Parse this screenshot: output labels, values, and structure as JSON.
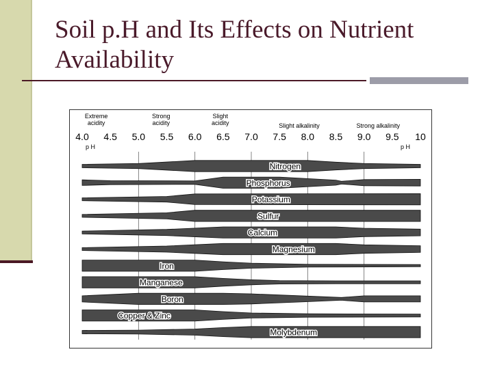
{
  "slide": {
    "title_line1": "Soil p.H and Its Effects on Nutrient",
    "title_line2": "Availability"
  },
  "colors": {
    "accent_bar": "#d7d9ad",
    "title": "#4a1a2a",
    "rule_dark": "#4a1824",
    "rule_light": "#9c9ca8",
    "band": "#4a4a4a"
  },
  "chart": {
    "acidity_labels": [
      {
        "line1": "Extreme",
        "line2": "acidity",
        "ph": 4.25
      },
      {
        "line1": "Strong",
        "line2": "acidity",
        "ph": 5.4
      },
      {
        "line1": "Slight",
        "line2": "acidity",
        "ph": 6.45
      },
      {
        "line1": "Slight alkalinity",
        "line2": "",
        "ph": 7.85
      },
      {
        "line1": "Strong alkalinity",
        "line2": "",
        "ph": 9.25
      }
    ],
    "ph_ticks": [
      "4.0",
      "4.5",
      "5.0",
      "5.5",
      "6.0",
      "6.5",
      "7.0",
      "7.5",
      "8.0",
      "8.5",
      "9.0",
      "9.5",
      "10"
    ],
    "ph_axis_label_left": "p H",
    "ph_axis_label_right": "p H",
    "nutrients": [
      {
        "name": "Nitrogen",
        "label_ph": 7.6,
        "widths": [
          [
            4,
            0.3
          ],
          [
            5,
            0.45
          ],
          [
            6,
            1
          ],
          [
            8,
            1
          ],
          [
            8.5,
            0.7
          ],
          [
            9,
            0.45
          ],
          [
            10,
            0.3
          ]
        ]
      },
      {
        "name": "Phosphorus",
        "label_ph": 7.3,
        "widths": [
          [
            4,
            0.5
          ],
          [
            4.5,
            0.35
          ],
          [
            6,
            0.3
          ],
          [
            6.5,
            1
          ],
          [
            7.5,
            1
          ],
          [
            8.5,
            0.45
          ],
          [
            8.6,
            0.25
          ],
          [
            9,
            0.55
          ],
          [
            10,
            0.6
          ]
        ]
      },
      {
        "name": "Potassium",
        "label_ph": 7.35,
        "widths": [
          [
            4,
            0.25
          ],
          [
            5.5,
            0.5
          ],
          [
            6,
            0.95
          ],
          [
            10,
            1
          ]
        ]
      },
      {
        "name": "Sulfur",
        "label_ph": 7.3,
        "widths": [
          [
            4,
            0.25
          ],
          [
            5.5,
            0.55
          ],
          [
            6,
            1
          ],
          [
            10,
            1
          ]
        ]
      },
      {
        "name": "Calcium",
        "label_ph": 7.2,
        "widths": [
          [
            4,
            0.25
          ],
          [
            5.5,
            0.55
          ],
          [
            6.5,
            1
          ],
          [
            8.5,
            1
          ],
          [
            9,
            0.75
          ],
          [
            10,
            0.6
          ]
        ]
      },
      {
        "name": "Magnesium",
        "label_ph": 7.75,
        "widths": [
          [
            4,
            0.25
          ],
          [
            5.5,
            0.55
          ],
          [
            6.5,
            1
          ],
          [
            8.5,
            1
          ],
          [
            9,
            0.75
          ],
          [
            10,
            0.6
          ]
        ]
      },
      {
        "name": "Iron",
        "label_ph": 5.5,
        "widths": [
          [
            4,
            1
          ],
          [
            6,
            1
          ],
          [
            6.5,
            0.7
          ],
          [
            7,
            0.45
          ],
          [
            8,
            0.25
          ],
          [
            10,
            0.2
          ]
        ]
      },
      {
        "name": "Manganese",
        "label_ph": 5.4,
        "widths": [
          [
            4,
            1
          ],
          [
            6,
            1
          ],
          [
            6.5,
            0.7
          ],
          [
            7,
            0.45
          ],
          [
            7.5,
            0.3
          ],
          [
            8.5,
            0.25
          ],
          [
            10,
            0.25
          ]
        ]
      },
      {
        "name": "Boron",
        "label_ph": 5.6,
        "widths": [
          [
            4,
            0.55
          ],
          [
            5,
            1
          ],
          [
            6.5,
            1
          ],
          [
            7,
            0.9
          ],
          [
            8,
            0.5
          ],
          [
            8.6,
            0.25
          ],
          [
            9,
            0.55
          ],
          [
            10,
            0.55
          ]
        ]
      },
      {
        "name": "Copper & Zinc",
        "label_ph": 5.1,
        "widths": [
          [
            4,
            1
          ],
          [
            6,
            1
          ],
          [
            6.5,
            0.7
          ],
          [
            7,
            0.45
          ],
          [
            8,
            0.3
          ],
          [
            10,
            0.25
          ]
        ]
      },
      {
        "name": "Molybdenum",
        "label_ph": 7.75,
        "widths": [
          [
            4,
            0.3
          ],
          [
            5,
            0.35
          ],
          [
            6,
            0.55
          ],
          [
            6.5,
            0.8
          ],
          [
            7,
            1
          ],
          [
            10,
            1
          ]
        ]
      }
    ]
  }
}
